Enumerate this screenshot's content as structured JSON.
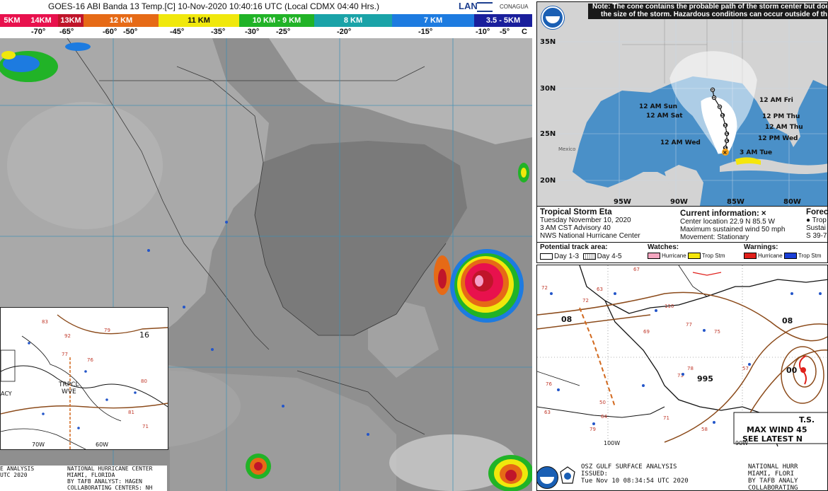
{
  "satellite": {
    "title": "GOES-16 ABI Banda 13 Temp.[C] 10-Nov-2020 10:40:16 UTC (Local CDMX  04:40 Hrs.)",
    "logo_lan": "LAN",
    "logo_conagua": "CONAGUA",
    "scale_bands": [
      {
        "label": "5KM",
        "color": "#e8114d"
      },
      {
        "label": "14KM",
        "color": "#e8114d"
      },
      {
        "label": "13KM",
        "color": "#c0152a"
      },
      {
        "label": "12 KM",
        "color": "#e66a16"
      },
      {
        "label": "11 KM",
        "color": "#f0e80c"
      },
      {
        "label": "10 KM - 9 KM",
        "color": "#21b327"
      },
      {
        "label": "8 KM",
        "color": "#1aa3a8"
      },
      {
        "label": "7 KM",
        "color": "#1d7be0"
      },
      {
        "label": "3.5 - 5KM",
        "color": "#1a1f9c"
      }
    ],
    "scale_ticks": [
      "-70°",
      "-65°",
      "-60°",
      "-50°",
      "-45°",
      "-35°",
      "-30°",
      "-25°",
      "-20°",
      "-15°",
      "-10°",
      "-5°",
      "C"
    ]
  },
  "inset_left": {
    "labels": [
      "16",
      "TRPCL",
      "WVE",
      "70W",
      "60W",
      "ACY"
    ],
    "station_values": [
      "92",
      "79",
      "83",
      "77",
      "76",
      "80",
      "81",
      "71"
    ],
    "footer_left": [
      "E ANALYSIS",
      "",
      "UTC 2020"
    ],
    "footer_right": [
      "NATIONAL HURRICANE CENTER",
      "MIAMI, FLORIDA",
      "BY TAFB ANALYST: HAGEN",
      "COLLABORATING CENTERS: NH"
    ]
  },
  "cone_map": {
    "note_line1": "Note: The cone contains the probable path of the storm center but does not show",
    "note_line2": "the size of the storm. Hazardous conditions can occur outside of the cone.",
    "lat_labels": [
      "35N",
      "30N",
      "25N",
      "20N"
    ],
    "lon_labels": [
      "95W",
      "90W",
      "85W",
      "80W"
    ],
    "mexico_label": "Mexico",
    "track_labels": [
      "12 AM Sun",
      "12 AM Sat",
      "12 AM Fri",
      "12 PM Thu",
      "12 AM Thu",
      "12 PM Wed",
      "12 AM Wed",
      "3 AM Tue"
    ],
    "storm_name": "Tropical Storm Eta",
    "date": "Tuesday November 10, 2020",
    "advisory": "3 AM CST Advisory 40",
    "center": "NWS National Hurricane Center",
    "current_title": "Current information:",
    "current_lines": [
      "Center location 22.9 N 85.5 W",
      "Maximum sustained wind 50 mph",
      "Movement: Stationary"
    ],
    "forecast_title": "Forec",
    "forecast_lines": [
      "Trop",
      "Sustai",
      "S 39-7"
    ],
    "potential_title": "Potential track area:",
    "day13": "Day 1-3",
    "day45": "Day 4-5",
    "watches_title": "Watches:",
    "watch_hurricane": "Hurricane",
    "watch_trop": "Trop Stm",
    "warnings_title": "Warnings:",
    "warn_hurricane": "Hurricane",
    "warn_trop": "Trop Stm",
    "colors": {
      "water": "#4a90c8",
      "land": "#d3d3d3",
      "cone": "#ffffff",
      "watch_h": "#f4a6c0",
      "watch_t": "#f5e60c",
      "warn_h": "#e0201b",
      "warn_t": "#1a3fd6"
    }
  },
  "surface": {
    "isobar_labels": [
      "08",
      "08",
      "995",
      "00"
    ],
    "stations": [
      "72",
      "67",
      "63",
      "72",
      "110",
      "77",
      "69",
      "75",
      "78",
      "57",
      "73",
      "50",
      "76",
      "63",
      "64",
      "79",
      "58",
      "71"
    ],
    "box_line1": "T.S.",
    "box_line2": "MAX WIND 45",
    "box_line3": "SEE LATEST N",
    "lon_labels": [
      "100W",
      "90W"
    ],
    "footer_left1": "OSZ GULF SURFACE ANALYSIS",
    "footer_left2": "ISSUED:",
    "footer_left3": "Tue Nov 10 08:34:54 UTC 2020",
    "footer_right1": "NATIONAL HURR",
    "footer_right2": "MIAMI, FLORI",
    "footer_right3": "BY TAFB ANALY",
    "footer_right4": "COLLABORATING"
  }
}
